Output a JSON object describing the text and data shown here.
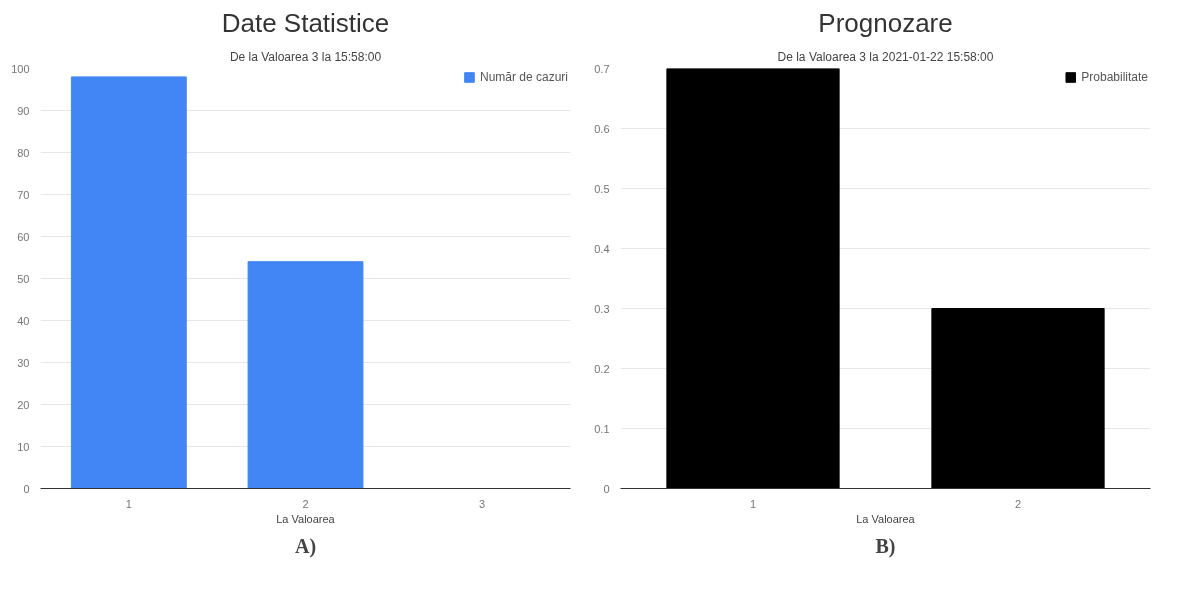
{
  "chart_data": [
    {
      "type": "bar",
      "title": "Date Statistice",
      "subtitle": "De la Valoarea 3 la 15:58:00",
      "xlabel": "La Valoarea",
      "categories": [
        "1",
        "2",
        "3"
      ],
      "series": [
        {
          "name": "Număr de cazuri",
          "color": "#4285f4",
          "values": [
            98,
            54,
            null
          ]
        }
      ],
      "ylim": [
        0,
        100
      ],
      "yticks": [
        0,
        10,
        20,
        30,
        40,
        50,
        60,
        70,
        80,
        90,
        100
      ],
      "grid": "y",
      "legend": "top right",
      "annotations": [
        "A)"
      ]
    },
    {
      "type": "bar",
      "title": "Prognozare",
      "subtitle": "De la Valoarea 3 la 2021-01-22 15:58:00",
      "xlabel": "La Valoarea",
      "categories": [
        "1",
        "2"
      ],
      "series": [
        {
          "name": "Probabilitate",
          "color": "#000000",
          "values": [
            0.7,
            0.3
          ]
        }
      ],
      "ylim": [
        0,
        0.7
      ],
      "yticks": [
        0,
        0.1,
        0.2,
        0.3,
        0.4,
        0.5,
        0.6,
        0.7
      ],
      "grid": "y",
      "legend": "top right",
      "annotations": [
        "B)"
      ]
    }
  ]
}
